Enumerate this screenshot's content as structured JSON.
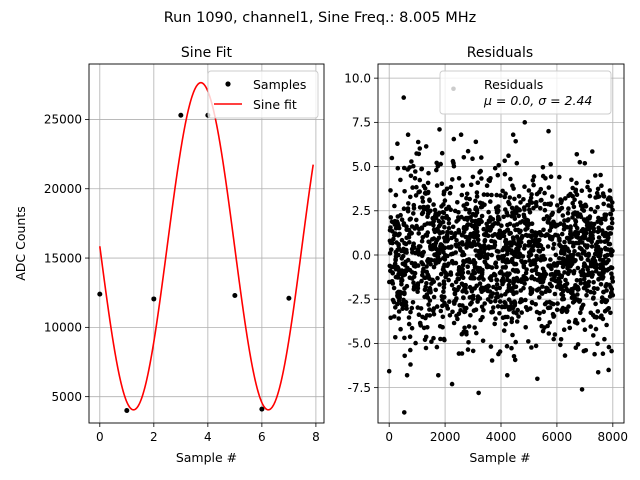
{
  "figure": {
    "suptitle": "Run 1090, channel1, Sine Freq.: 8.005 MHz"
  },
  "chart_data": [
    {
      "type": "line",
      "title": "Sine Fit",
      "xlabel": "Sample #",
      "ylabel": "ADC Counts",
      "xlim": [
        -0.4,
        8.3
      ],
      "ylim": [
        3100,
        29000
      ],
      "xticks": [
        0,
        2,
        4,
        6,
        8
      ],
      "yticks": [
        5000,
        10000,
        15000,
        20000,
        25000
      ],
      "grid": true,
      "legend_position": "top-right",
      "series": [
        {
          "name": "Samples",
          "kind": "scatter",
          "color": "#000000",
          "x": [
            0,
            1,
            2,
            3,
            4,
            5,
            6,
            7
          ],
          "y": [
            12400,
            4000,
            12050,
            25300,
            25300,
            12300,
            4100,
            12100
          ]
        },
        {
          "name": "Sine fit",
          "kind": "line",
          "color": "#ff0000",
          "model": {
            "offset": 15850,
            "amplitude": 11800,
            "period_samples": 4.99,
            "phase_sample": 0,
            "x_range": [
              0,
              7.9
            ]
          }
        }
      ]
    },
    {
      "type": "scatter",
      "title": "Residuals",
      "xlabel": "Sample #",
      "ylabel": "",
      "xlim": [
        -400,
        8400
      ],
      "ylim": [
        -9.5,
        10.8
      ],
      "xticks": [
        0,
        2000,
        4000,
        6000,
        8000
      ],
      "yticks": [
        -7.5,
        -5.0,
        -2.5,
        0.0,
        2.5,
        5.0,
        7.5,
        10.0
      ],
      "grid": true,
      "legend_position": "top-right",
      "series": [
        {
          "name": "Residuals",
          "stats_label": "μ = 0.0, σ = 2.44",
          "color": "#000000",
          "distribution": {
            "n_points": 8000,
            "x_range": [
              0,
              8000
            ],
            "mean": 0.0,
            "std": 2.44
          },
          "outliers": [
            [
              2300,
              9.4
            ],
            [
              520,
              8.9
            ],
            [
              4850,
              7.5
            ],
            [
              1800,
              7.1
            ],
            [
              5700,
              7.0
            ],
            [
              3100,
              6.4
            ],
            [
              540,
              -8.9
            ],
            [
              3200,
              -7.8
            ],
            [
              6900,
              -7.6
            ],
            [
              2250,
              -7.3
            ],
            [
              5300,
              -7.0
            ],
            [
              7850,
              -6.5
            ]
          ]
        }
      ]
    }
  ]
}
